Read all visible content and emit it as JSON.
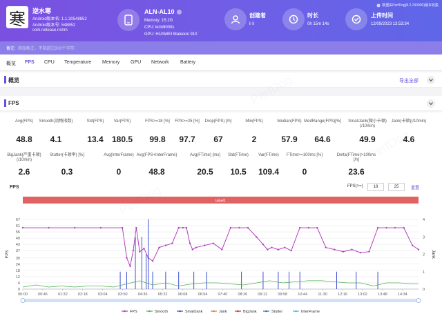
{
  "app": {
    "name": "逆水寒",
    "android_version": "Android版本名: 1.1.30548852",
    "android_code": "Android版本号: 548852",
    "package": "com.netease.nshm",
    "icon_glyph": "寒"
  },
  "device": {
    "model": "ALN-AL10",
    "memory": "Memory: 15.2G",
    "cpu": "CPU: kirin9000s",
    "gpu": "GPU: HUAWEI Maleoon 910",
    "icon": "phone-icon"
  },
  "creator": {
    "label": "创建者",
    "value": "li li",
    "icon": "user-icon"
  },
  "duration": {
    "label": "时长",
    "value": "0h 15m 14s",
    "icon": "clock-icon"
  },
  "upload": {
    "label": "上传时间",
    "value": "12/09/2023 13:53:34",
    "icon": "check-circle-icon"
  },
  "brand_note": "数据由PerfDog(8.2.230900)版本收集",
  "note": {
    "label": "备注:",
    "placeholder": "添加备注，不能超过200个字符"
  },
  "tabs": [
    "概览",
    "FPS",
    "CPU",
    "Temperature",
    "Memory",
    "GPU",
    "Network",
    "Battery"
  ],
  "active_tab": "FPS",
  "overview": {
    "title": "概览",
    "export": "导出全部"
  },
  "fps_section": {
    "title": "FPS"
  },
  "stats_row1": [
    {
      "label": "Avg(FPS)",
      "value": "48.8"
    },
    {
      "label": "Smooth(流畅指数)",
      "value": "4.1"
    },
    {
      "label": "Std(FPS)",
      "value": "13.4"
    },
    {
      "label": "Var(FPS)",
      "value": "180.5"
    },
    {
      "label": "FPS>=18 [%]",
      "value": "99.8"
    },
    {
      "label": "FPS>=25 [%]",
      "value": "97.7"
    },
    {
      "label": "Drop(FPS) [/h]",
      "value": "67"
    },
    {
      "label": "Min(FPS)",
      "value": "2"
    },
    {
      "label": "Median(FPS)",
      "value": "57.9"
    },
    {
      "label": "MedRange(FPS)[%]",
      "value": "64.6"
    },
    {
      "label": "SmallJank(微小卡顿)(/10min)",
      "value": "49.9"
    },
    {
      "label": "Jank(卡顿)(/10min)",
      "value": "4.6"
    }
  ],
  "stats_row2": [
    {
      "label": "BigJank(严重卡顿)(/10min)",
      "value": "2.6"
    },
    {
      "label": "Stutter(卡顿率) [%]",
      "value": "0.3"
    },
    {
      "label": "Avg(InterFrame)",
      "value": "0"
    },
    {
      "label": "Avg(FPS+InterFrame)",
      "value": "48.8"
    },
    {
      "label": "Avg(FTime) [ms]",
      "value": "20.5"
    },
    {
      "label": "Std(FTime)",
      "value": "10.5"
    },
    {
      "label": "Var(FTime)",
      "value": "109.4"
    },
    {
      "label": "FTime>=100ms [%]",
      "value": "0"
    },
    {
      "label": "Delta(FTime)>100ms [/h]",
      "value": "23.6"
    }
  ],
  "chart_controls": {
    "title": "FPS",
    "fps_label": "FPS(>=)",
    "threshold_1": "18",
    "threshold_2": "25",
    "reset": "重置"
  },
  "watermark": "PerfDog",
  "colors": {
    "accent": "#6a4fe0",
    "fps": "#b33dbd",
    "smooth": "#4fae4f",
    "smalljank": "#3a4fd0",
    "jank": "#e07b30",
    "bigjank": "#d43030",
    "stutter": "#2b6fb8",
    "interframe": "#40b8e0",
    "labelbar": "#e06262"
  },
  "chart_data": {
    "type": "line",
    "title": "",
    "label_bar": "label1",
    "y_left_label": "FPS",
    "y_right_label": "Jank",
    "y_left_ticks": [
      "0",
      "6",
      "12",
      "18",
      "24",
      "30",
      "37",
      "43",
      "49",
      "55",
      "61",
      "67"
    ],
    "y_right_ticks": [
      "0",
      "1",
      "2",
      "3",
      "4"
    ],
    "ylim": [
      0,
      67
    ],
    "ylim_right": [
      0,
      4
    ],
    "x_ticks": [
      "00:00",
      "00:46",
      "01:32",
      "02:18",
      "03:04",
      "03:50",
      "04:36",
      "05:22",
      "06:08",
      "06:54",
      "07:40",
      "08:26",
      "09:12",
      "09:58",
      "10:44",
      "11:30",
      "12:16",
      "13:02",
      "13:48",
      "14:34"
    ],
    "legend": [
      "FPS",
      "Smooth",
      "SmallJank",
      "Jank",
      "BigJank",
      "Stutter",
      "InterFrame"
    ],
    "legend_position": "bottom",
    "fps_series": {
      "t_sec": [
        0,
        60,
        120,
        180,
        230,
        240,
        248,
        255,
        262,
        270,
        280,
        290,
        300,
        315,
        330,
        345,
        360,
        370,
        378,
        386,
        392,
        400,
        420,
        440,
        460,
        480,
        500,
        520,
        540,
        555,
        565,
        575,
        590,
        605,
        620,
        640,
        660,
        680,
        700,
        720,
        740,
        760,
        780,
        800,
        820,
        840,
        860,
        880,
        900,
        914
      ],
      "fps": [
        59,
        59,
        59,
        59,
        59,
        30,
        22,
        37,
        59,
        36,
        39,
        30,
        27,
        40,
        42,
        44,
        59,
        59,
        59,
        44,
        38,
        40,
        42,
        44,
        38,
        59,
        59,
        59,
        50,
        43,
        38,
        40,
        38,
        40,
        37,
        59,
        59,
        59,
        40,
        38,
        36,
        38,
        35,
        36,
        59,
        59,
        59,
        59,
        42,
        38
      ]
    },
    "smooth_series": {
      "t_sec": [
        0,
        30,
        60,
        90,
        120,
        150,
        180,
        210,
        240,
        270,
        300,
        330,
        360,
        390,
        420,
        450,
        480,
        510,
        540,
        570,
        600,
        630,
        660,
        690,
        720,
        750,
        780,
        810,
        840,
        870,
        900,
        914
      ],
      "smooth": [
        2,
        4,
        2,
        3,
        2,
        3,
        3,
        2,
        5,
        8,
        4,
        6,
        3,
        5,
        6,
        6,
        5,
        4,
        6,
        8,
        6,
        7,
        8,
        8,
        7,
        6,
        6,
        3,
        6,
        6,
        5,
        5
      ]
    },
    "jank_spikes": {
      "t_sec": [
        225,
        240,
        260,
        275,
        285,
        290,
        300,
        330,
        360,
        395,
        425,
        505,
        555,
        590,
        615,
        640,
        725,
        770,
        820
      ],
      "value": [
        1,
        1,
        3,
        3,
        2,
        4,
        1,
        1,
        1,
        1,
        1,
        1,
        1,
        1,
        1,
        1,
        1,
        1,
        1
      ]
    }
  }
}
